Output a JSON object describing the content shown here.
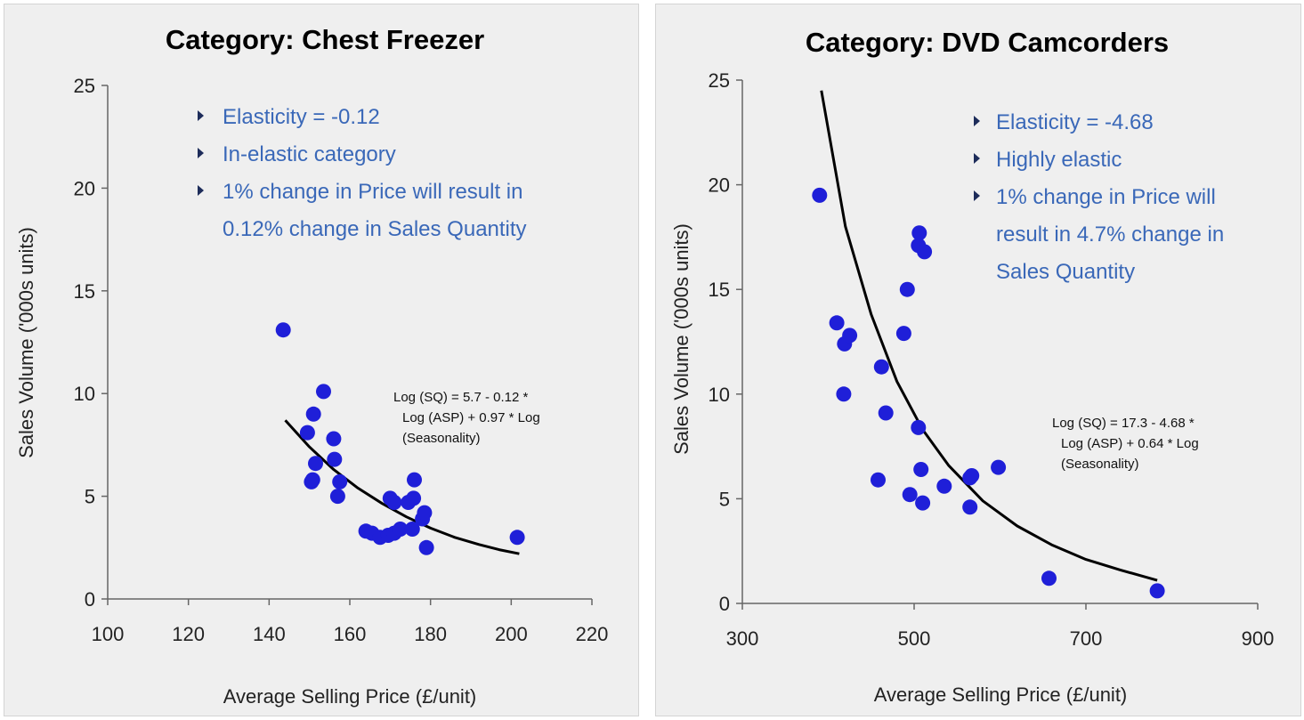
{
  "chart_data": [
    {
      "type": "scatter",
      "title": "Category: Chest Freezer",
      "xlabel": "Average Selling Price (£/unit)",
      "ylabel": "Sales Volume ('000s units)",
      "xlim": [
        100,
        220
      ],
      "ylim": [
        0,
        25
      ],
      "xticks": [
        100,
        120,
        140,
        160,
        180,
        200,
        220
      ],
      "yticks": [
        0,
        5,
        10,
        15,
        20,
        25
      ],
      "grid": false,
      "points": [
        [
          143.5,
          13.1
        ],
        [
          149.5,
          8.1
        ],
        [
          150.5,
          5.7
        ],
        [
          150.8,
          5.8
        ],
        [
          151,
          9
        ],
        [
          151.5,
          6.6
        ],
        [
          153.5,
          10.1
        ],
        [
          156,
          7.8
        ],
        [
          156.2,
          6.8
        ],
        [
          157,
          5
        ],
        [
          157.5,
          5.7
        ],
        [
          164,
          3.3
        ],
        [
          165.5,
          3.2
        ],
        [
          167.5,
          3
        ],
        [
          169.5,
          3.1
        ],
        [
          170,
          4.9
        ],
        [
          171,
          3.2
        ],
        [
          171,
          4.7
        ],
        [
          172.5,
          3.4
        ],
        [
          174.5,
          4.7
        ],
        [
          175.5,
          3.4
        ],
        [
          175.8,
          4.9
        ],
        [
          176,
          5.8
        ],
        [
          178,
          3.9
        ],
        [
          178.5,
          4.2
        ],
        [
          179,
          2.5
        ],
        [
          201.5,
          3
        ]
      ],
      "fit_curve": {
        "x": [
          144,
          150,
          156,
          162,
          168,
          174,
          180,
          186,
          192,
          197,
          202
        ],
        "y": [
          8.7,
          7.4,
          6.3,
          5.4,
          4.65,
          4.0,
          3.45,
          3.0,
          2.65,
          2.4,
          2.2
        ]
      },
      "bullets": [
        "Elasticity =  -0.12",
        "In-elastic category",
        "1% change in Price will result in",
        "0.12% change in Sales Quantity"
      ],
      "equation": [
        "Log (SQ) = 5.7 - 0.12 *",
        "Log (ASP) + 0.97 * Log",
        "(Seasonality)"
      ],
      "colors": {
        "points": "#1f1fd8",
        "curve": "#000000",
        "bullet_text": "#3a68b8"
      }
    },
    {
      "type": "scatter",
      "title": "Category: DVD Camcorders",
      "xlabel": "Average Selling Price (£/unit)",
      "ylabel": "Sales Volume ('000s units)",
      "xlim": [
        300,
        900
      ],
      "ylim": [
        0,
        25
      ],
      "xticks": [
        300,
        500,
        700,
        900
      ],
      "yticks": [
        0,
        5,
        10,
        15,
        20,
        25
      ],
      "grid": false,
      "points": [
        [
          390,
          19.5
        ],
        [
          410,
          13.4
        ],
        [
          418,
          10
        ],
        [
          419,
          12.4
        ],
        [
          425,
          12.8
        ],
        [
          458,
          5.9
        ],
        [
          462,
          11.3
        ],
        [
          467,
          9.1
        ],
        [
          488,
          12.9
        ],
        [
          492,
          15
        ],
        [
          495,
          5.2
        ],
        [
          505,
          8.4
        ],
        [
          505,
          17.1
        ],
        [
          506,
          17.7
        ],
        [
          508,
          6.4
        ],
        [
          510,
          4.8
        ],
        [
          512,
          16.8
        ],
        [
          535,
          5.6
        ],
        [
          565,
          6
        ],
        [
          565,
          4.6
        ],
        [
          567,
          6.1
        ],
        [
          598,
          6.5
        ],
        [
          657,
          1.2
        ],
        [
          783,
          0.6
        ]
      ],
      "fit_curve": {
        "x": [
          392,
          420,
          450,
          480,
          510,
          540,
          580,
          620,
          660,
          700,
          740,
          783
        ],
        "y": [
          24.5,
          18,
          13.8,
          10.6,
          8.3,
          6.6,
          4.9,
          3.7,
          2.8,
          2.1,
          1.6,
          1.1
        ]
      },
      "bullets": [
        "Elasticity =  -4.68",
        "Highly elastic",
        "1% change in Price will",
        "result in 4.7% change in",
        "Sales Quantity"
      ],
      "equation": [
        "Log (SQ) = 17.3 - 4.68 *",
        "Log (ASP) + 0.64 * Log",
        "(Seasonality)"
      ],
      "colors": {
        "points": "#1f1fd8",
        "curve": "#000000",
        "bullet_text": "#3a68b8"
      }
    }
  ]
}
